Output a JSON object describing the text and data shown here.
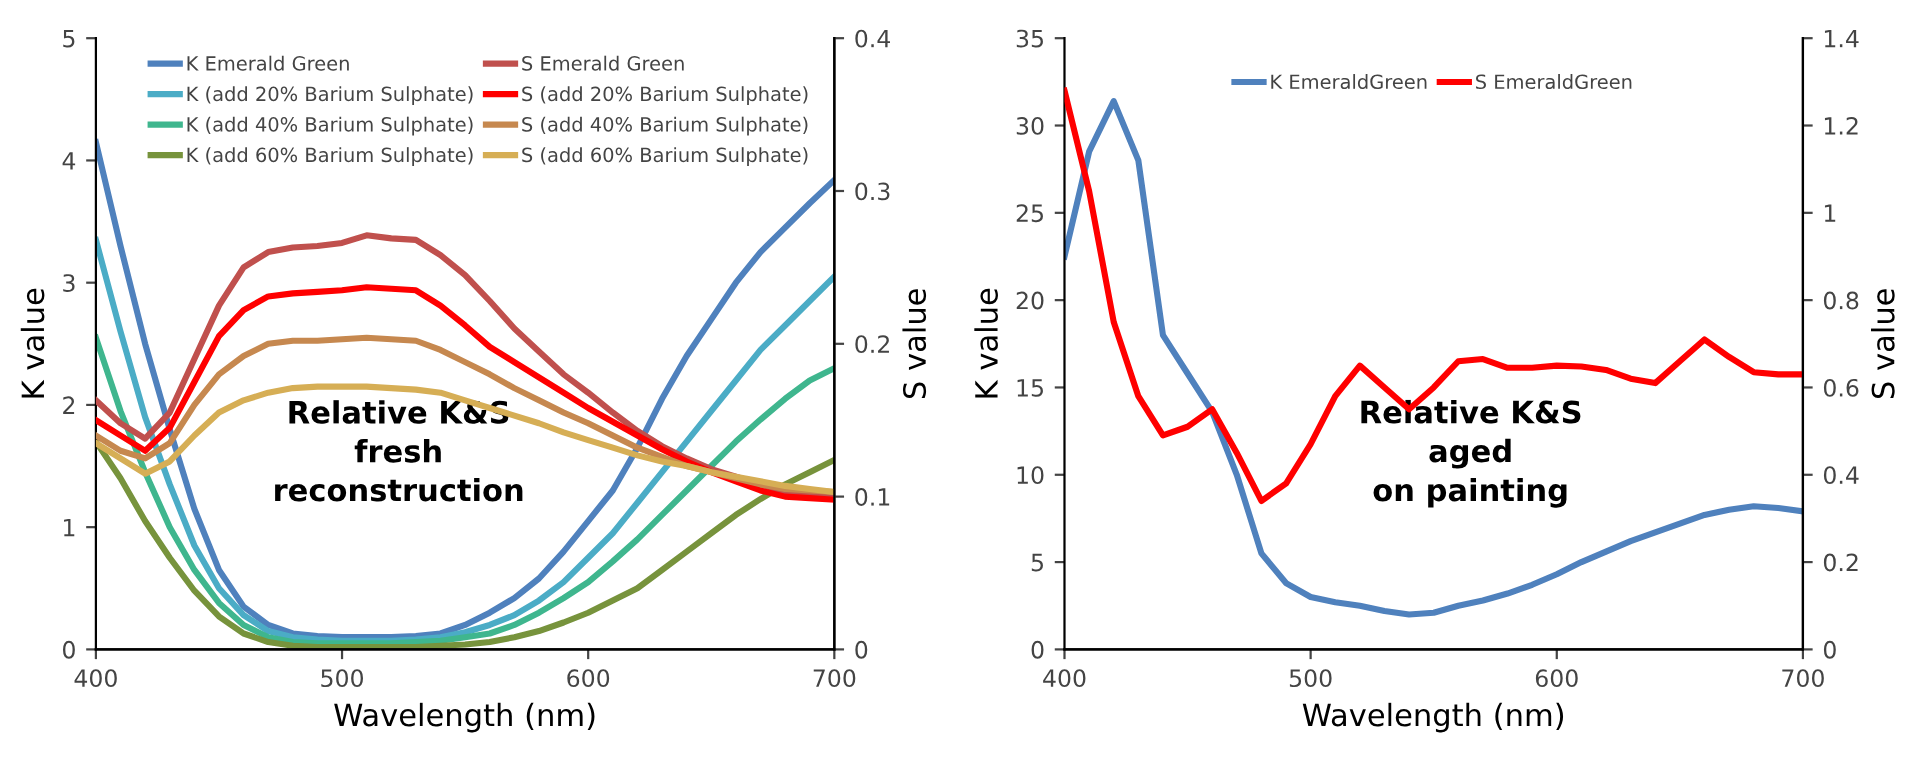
{
  "chart_data": [
    {
      "type": "line",
      "xlabel": "Wavelength (nm)",
      "ylabel": "K value",
      "y2label": "S value",
      "x": [
        400,
        410,
        420,
        430,
        440,
        450,
        460,
        470,
        480,
        490,
        500,
        510,
        520,
        530,
        540,
        550,
        560,
        570,
        580,
        590,
        600,
        610,
        620,
        630,
        640,
        650,
        660,
        670,
        680,
        690,
        700
      ],
      "xlim": [
        400,
        700
      ],
      "xticks": [
        400,
        500,
        600,
        700
      ],
      "ylim": [
        0,
        5
      ],
      "yticks": [
        0,
        1,
        2,
        3,
        4,
        5
      ],
      "y2lim": [
        0,
        0.4
      ],
      "y2ticks": [
        0,
        0.1,
        0.2,
        0.3,
        0.4
      ],
      "grid": false,
      "legend": "top",
      "marker": "none",
      "line_style": "solid",
      "annotations": [
        "Relative K&S\nfresh\nreconstruction"
      ],
      "series": [
        {
          "name": "K Emerald Green",
          "color": "#4f81bd",
          "values": [
            4.15,
            3.3,
            2.5,
            1.8,
            1.15,
            0.65,
            0.35,
            0.2,
            0.13,
            0.11,
            0.1,
            0.1,
            0.1,
            0.11,
            0.13,
            0.2,
            0.3,
            0.42,
            0.58,
            0.8,
            1.05,
            1.3,
            1.65,
            2.05,
            2.4,
            2.7,
            3.0,
            3.25,
            3.45,
            3.65,
            3.84
          ]
        },
        {
          "name": "S Emerald Green",
          "color": "#c0504d",
          "axis": "y2",
          "values": [
            0.163,
            0.148,
            0.138,
            0.155,
            0.19,
            0.225,
            0.25,
            0.26,
            0.263,
            0.264,
            0.266,
            0.271,
            0.269,
            0.268,
            0.258,
            0.245,
            0.228,
            0.21,
            0.195,
            0.18,
            0.168,
            0.155,
            0.143,
            0.133,
            0.125,
            0.118,
            0.113,
            0.108,
            0.103,
            0.101,
            0.1
          ]
        },
        {
          "name": "K (add 20% Barium Sulphate)",
          "color": "#4bacc6",
          "values": [
            3.35,
            2.6,
            1.9,
            1.35,
            0.85,
            0.5,
            0.28,
            0.15,
            0.1,
            0.08,
            0.07,
            0.07,
            0.07,
            0.08,
            0.1,
            0.14,
            0.2,
            0.28,
            0.4,
            0.55,
            0.75,
            0.95,
            1.2,
            1.45,
            1.7,
            1.95,
            2.2,
            2.45,
            2.65,
            2.85,
            3.05
          ]
        },
        {
          "name": "S (add 20% Barium Sulphate)",
          "color": "#ff0000",
          "axis": "y2",
          "values": [
            0.15,
            0.14,
            0.13,
            0.145,
            0.175,
            0.205,
            0.222,
            0.231,
            0.233,
            0.234,
            0.235,
            0.237,
            0.236,
            0.235,
            0.225,
            0.212,
            0.198,
            0.188,
            0.178,
            0.168,
            0.158,
            0.149,
            0.14,
            0.131,
            0.123,
            0.116,
            0.11,
            0.104,
            0.1,
            0.099,
            0.098
          ]
        },
        {
          "name": "K (add 40% Barium Sulphate)",
          "color": "#3fb68e",
          "values": [
            2.55,
            1.95,
            1.45,
            1.0,
            0.65,
            0.38,
            0.2,
            0.1,
            0.06,
            0.05,
            0.05,
            0.05,
            0.05,
            0.06,
            0.07,
            0.1,
            0.13,
            0.2,
            0.3,
            0.42,
            0.55,
            0.72,
            0.9,
            1.1,
            1.3,
            1.5,
            1.7,
            1.88,
            2.05,
            2.2,
            2.3
          ]
        },
        {
          "name": "S (add 40% Barium Sulphate)",
          "color": "#c6884f",
          "axis": "y2",
          "values": [
            0.14,
            0.13,
            0.125,
            0.135,
            0.16,
            0.18,
            0.192,
            0.2,
            0.202,
            0.202,
            0.203,
            0.204,
            0.203,
            0.202,
            0.196,
            0.188,
            0.18,
            0.171,
            0.163,
            0.155,
            0.148,
            0.14,
            0.132,
            0.126,
            0.12,
            0.116,
            0.112,
            0.108,
            0.105,
            0.104,
            0.103
          ]
        },
        {
          "name": "K (add 60% Barium Sulphate)",
          "color": "#77933c",
          "values": [
            1.7,
            1.4,
            1.05,
            0.75,
            0.48,
            0.27,
            0.13,
            0.06,
            0.03,
            0.02,
            0.02,
            0.02,
            0.02,
            0.02,
            0.03,
            0.04,
            0.06,
            0.1,
            0.15,
            0.22,
            0.3,
            0.4,
            0.5,
            0.65,
            0.8,
            0.95,
            1.1,
            1.23,
            1.35,
            1.45,
            1.55
          ]
        },
        {
          "name": "S (add 60% Barium Sulphate)",
          "color": "#d6ae55",
          "axis": "y2",
          "values": [
            0.135,
            0.125,
            0.115,
            0.123,
            0.14,
            0.155,
            0.163,
            0.168,
            0.171,
            0.172,
            0.172,
            0.172,
            0.171,
            0.17,
            0.168,
            0.163,
            0.158,
            0.153,
            0.148,
            0.142,
            0.137,
            0.132,
            0.127,
            0.123,
            0.12,
            0.116,
            0.113,
            0.11,
            0.107,
            0.105,
            0.103
          ]
        }
      ]
    },
    {
      "type": "line",
      "xlabel": "Wavelength (nm)",
      "ylabel": "K value",
      "y2label": "S value",
      "x": [
        400,
        410,
        420,
        430,
        440,
        450,
        460,
        470,
        480,
        490,
        500,
        510,
        520,
        530,
        540,
        550,
        560,
        570,
        580,
        590,
        600,
        610,
        620,
        630,
        640,
        650,
        660,
        670,
        680,
        690,
        700
      ],
      "xlim": [
        400,
        700
      ],
      "xticks": [
        400,
        500,
        600,
        700
      ],
      "ylim": [
        0,
        35
      ],
      "yticks": [
        0,
        5,
        10,
        15,
        20,
        25,
        30,
        35
      ],
      "y2lim": [
        0,
        1.4
      ],
      "y2ticks": [
        0,
        0.2,
        0.4,
        0.6,
        0.8,
        1,
        1.2,
        1.4
      ],
      "grid": false,
      "legend": "top",
      "marker": "none",
      "line_style": "solid",
      "annotations": [
        "Relative K&S\naged\non painting"
      ],
      "series": [
        {
          "name": "K EmeraldGreen",
          "color": "#4f81bd",
          "values": [
            22.5,
            28.5,
            31.4,
            28,
            18,
            15.8,
            13.6,
            10,
            5.5,
            3.8,
            3.0,
            2.7,
            2.5,
            2.2,
            2.0,
            2.1,
            2.5,
            2.8,
            3.2,
            3.7,
            4.3,
            5.0,
            5.6,
            6.2,
            6.7,
            7.2,
            7.7,
            8.0,
            8.2,
            8.1,
            7.9
          ]
        },
        {
          "name": "S EmeraldGreen",
          "color": "#ff0000",
          "axis": "y2",
          "values": [
            1.28,
            1.05,
            0.75,
            0.58,
            0.49,
            0.51,
            0.55,
            0.45,
            0.34,
            0.38,
            0.47,
            0.58,
            0.65,
            0.6,
            0.55,
            0.6,
            0.66,
            0.665,
            0.645,
            0.645,
            0.65,
            0.648,
            0.64,
            0.62,
            0.61,
            0.66,
            0.71,
            0.67,
            0.635,
            0.63,
            0.63
          ]
        }
      ]
    }
  ]
}
